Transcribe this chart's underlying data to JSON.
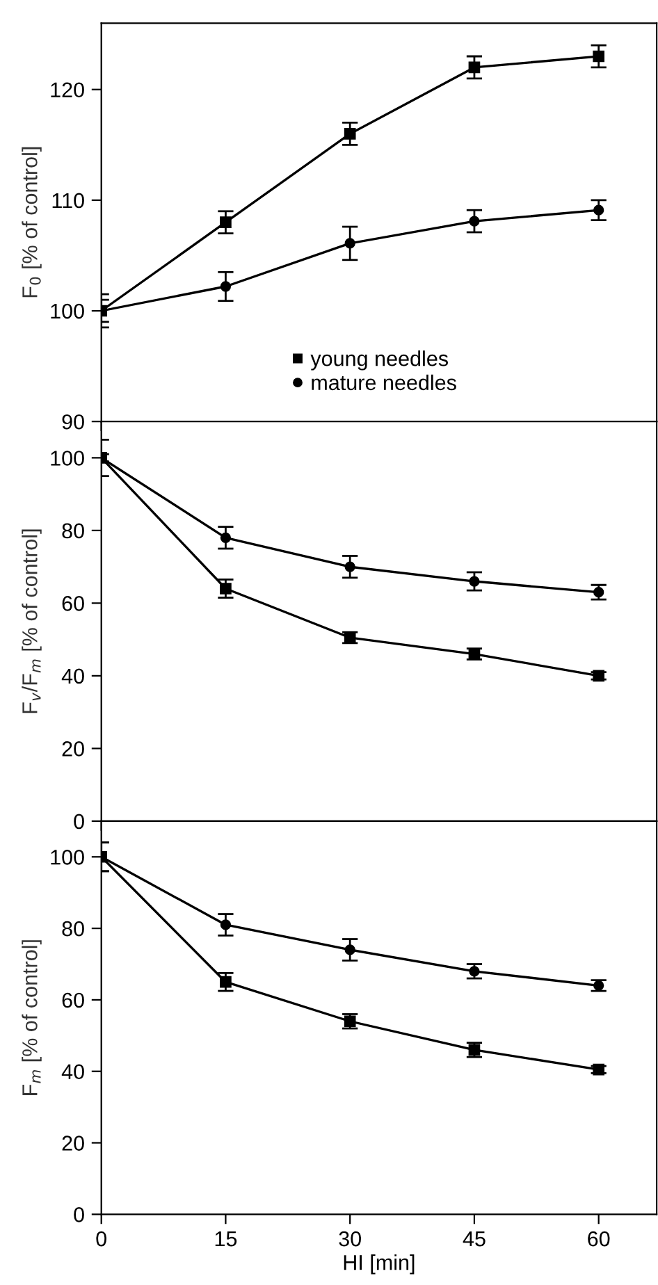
{
  "chart_data": [
    {
      "type": "line",
      "ylabel": "F$_{0}$ [% of control]",
      "x": [
        0,
        15,
        30,
        45,
        60
      ],
      "xlim": [
        0,
        67
      ],
      "xticks": [
        0,
        15,
        30,
        45,
        60
      ],
      "ylim": [
        90,
        126
      ],
      "yticks": [
        90,
        100,
        110,
        120
      ],
      "tick_labels": "y",
      "legend": "bottom left",
      "grid": false,
      "line_style": "solid",
      "series": [
        {
          "name": "young needles",
          "color": "#000000",
          "marker": "square",
          "values": [
            100,
            108,
            116,
            122,
            123
          ],
          "errors": [
            1.5,
            1,
            1,
            1,
            1
          ]
        },
        {
          "name": "mature needles",
          "color": "#000000",
          "marker": "circle",
          "values": [
            100,
            102.2,
            106.1,
            108.1,
            109.1
          ],
          "errors": [
            1,
            1.3,
            1.5,
            1,
            0.9
          ]
        }
      ]
    },
    {
      "type": "line",
      "ylabel": "F$_{v}$/F$_{m}$ [% of control]",
      "x": [
        0,
        15,
        30,
        45,
        60
      ],
      "xlim": [
        0,
        67
      ],
      "xticks": [
        0,
        15,
        30,
        45,
        60
      ],
      "ylim": [
        0,
        110
      ],
      "yticks": [
        0,
        20,
        40,
        60,
        80,
        100
      ],
      "tick_labels": "y",
      "grid": false,
      "line_style": "solid",
      "series": [
        {
          "color": "#000000",
          "marker": "square",
          "values": [
            100,
            64,
            50.5,
            46,
            40
          ],
          "errors": [
            5,
            2.5,
            1.5,
            1.5,
            1
          ]
        },
        {
          "color": "#000000",
          "marker": "circle",
          "values": [
            100,
            78,
            70,
            66,
            63
          ],
          "errors": [
            1,
            3,
            3,
            2.5,
            2
          ]
        }
      ]
    },
    {
      "type": "line",
      "ylabel": "F$_{m}$ [% of control]",
      "xlabel": "HI [min]",
      "x": [
        0,
        15,
        30,
        45,
        60
      ],
      "xlim": [
        0,
        67
      ],
      "xticks": [
        0,
        15,
        30,
        45,
        60
      ],
      "ylim": [
        0,
        110
      ],
      "yticks": [
        0,
        20,
        40,
        60,
        80,
        100
      ],
      "grid": false,
      "line_style": "solid",
      "series": [
        {
          "color": "#000000",
          "marker": "square",
          "values": [
            100,
            65,
            54,
            46,
            40.5
          ],
          "errors": [
            4,
            2.5,
            2,
            2,
            1
          ]
        },
        {
          "color": "#000000",
          "marker": "circle",
          "values": [
            100,
            81,
            74,
            68,
            64
          ],
          "errors": [
            4,
            3,
            3,
            2,
            1.5
          ]
        }
      ]
    }
  ]
}
